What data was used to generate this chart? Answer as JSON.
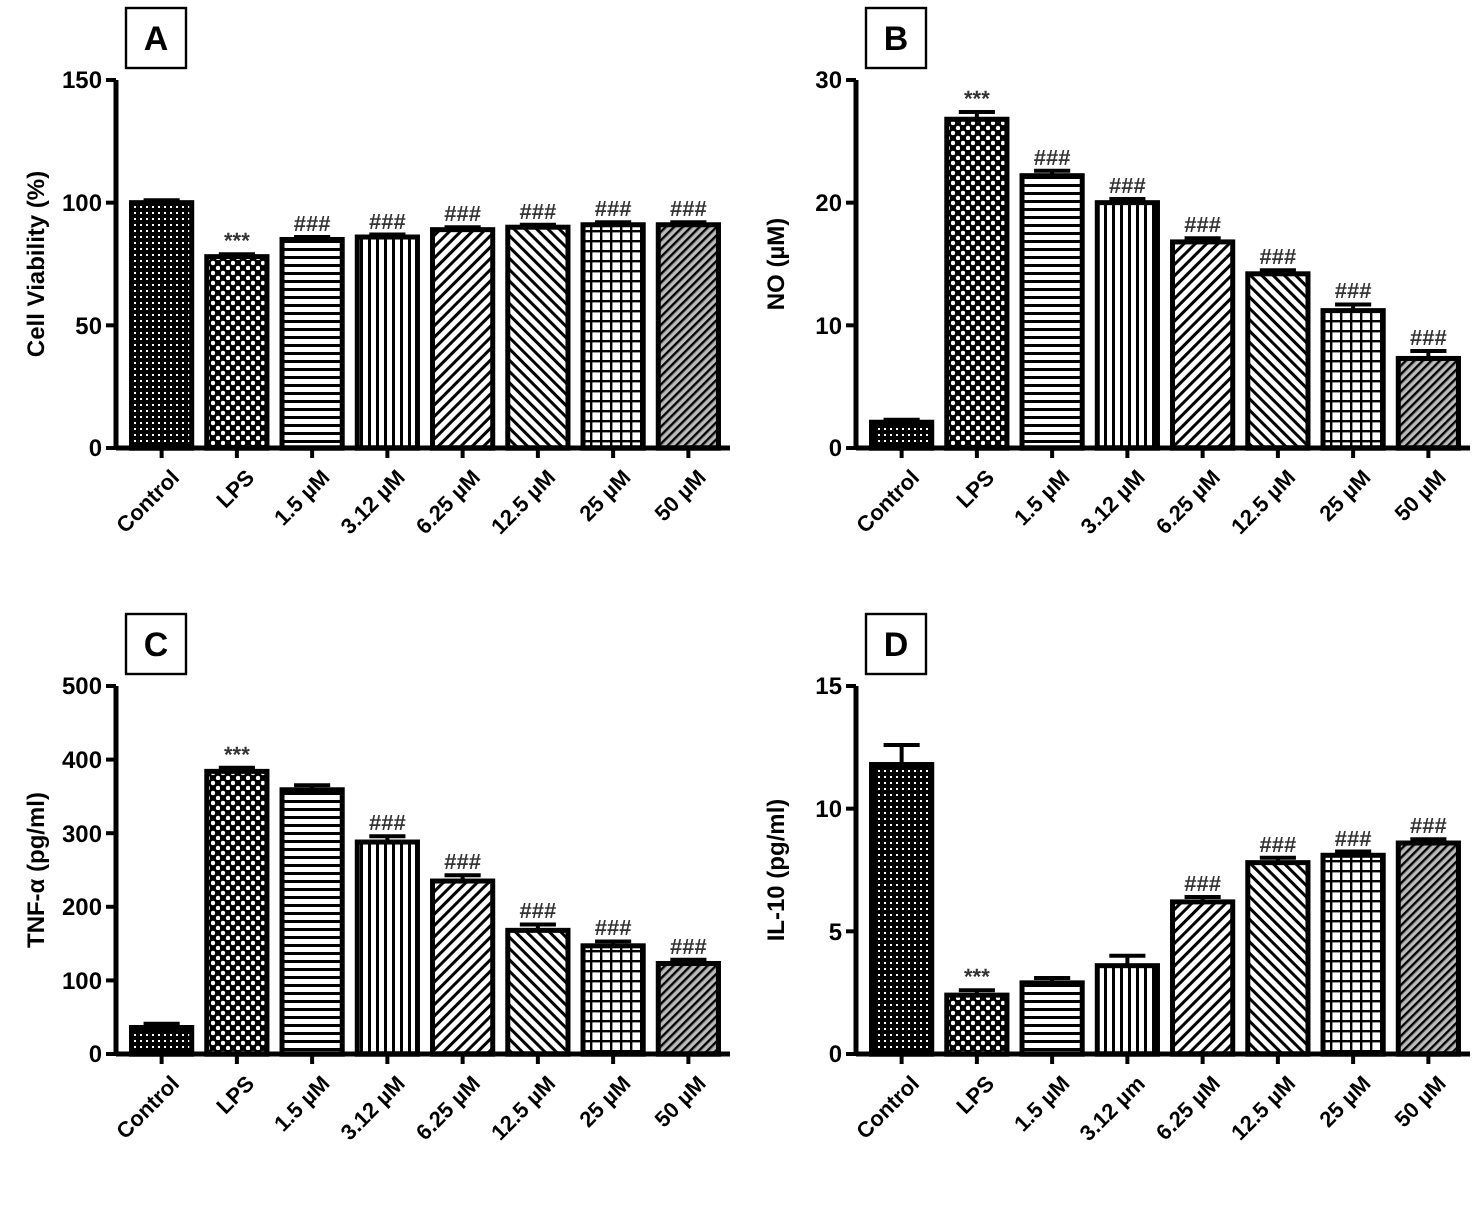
{
  "chart_data": [
    {
      "type": "bar",
      "title": "A",
      "ylabel": "Cell Viability (%)",
      "categories": [
        "Control",
        "LPS",
        "1.5 µM",
        "3.12 µM",
        "6.25 µM",
        "12.5 µM",
        "25 µM",
        "50 µM"
      ],
      "values": [
        100,
        78,
        85,
        86,
        89,
        90,
        91,
        91
      ],
      "errors": [
        1,
        1,
        1,
        1,
        1,
        1,
        1,
        1
      ],
      "color": "#000000",
      "ylim": [
        0,
        150
      ],
      "yticks": [
        0,
        50,
        100,
        150
      ],
      "annotations": [
        {
          "text": "***",
          "x": "LPS",
          "y": 79
        },
        {
          "text": "###",
          "x": "1.5 µM",
          "y": 86
        },
        {
          "text": "###",
          "x": "3.12 µM",
          "y": 87
        },
        {
          "text": "###",
          "x": "6.25 µM",
          "y": 90
        },
        {
          "text": "###",
          "x": "12.5 µM",
          "y": 91
        },
        {
          "text": "###",
          "x": "25 µM",
          "y": 92
        },
        {
          "text": "###",
          "x": "50 µM",
          "y": 92
        }
      ]
    },
    {
      "type": "bar",
      "title": "B",
      "ylabel": "NO (µM)",
      "categories": [
        "Control",
        "LPS",
        "1.5 µM",
        "3.12 µM",
        "6.25 µM",
        "12.5 µM",
        "25 µM",
        "50 µM"
      ],
      "values": [
        2.1,
        26.8,
        22.2,
        20,
        16.8,
        14.2,
        11.2,
        7.3
      ],
      "errors": [
        0.2,
        0.6,
        0.4,
        0.3,
        0.3,
        0.3,
        0.5,
        0.6
      ],
      "color": "#000000",
      "ylim": [
        0,
        30
      ],
      "yticks": [
        0,
        10,
        20,
        30
      ],
      "annotations": [
        {
          "text": "***",
          "x": "LPS",
          "y": 27.4
        },
        {
          "text": "###",
          "x": "1.5 µM",
          "y": 22.6
        },
        {
          "text": "###",
          "x": "3.12 µM",
          "y": 20.3
        },
        {
          "text": "###",
          "x": "6.25 µM",
          "y": 17.1
        },
        {
          "text": "###",
          "x": "12.5 µM",
          "y": 14.5
        },
        {
          "text": "###",
          "x": "25 µM",
          "y": 11.7
        },
        {
          "text": "###",
          "x": "50 µM",
          "y": 7.9
        }
      ]
    },
    {
      "type": "bar",
      "title": "C",
      "ylabel": "TNF-α (pg/ml)",
      "categories": [
        "Control",
        "LPS",
        "1.5 µM",
        "3.12 µM",
        "6.25 µM",
        "12.5 µM",
        "25 µM",
        "50 µM"
      ],
      "values": [
        36,
        384,
        359,
        288,
        235,
        168,
        147,
        123
      ],
      "errors": [
        5,
        5,
        6,
        8,
        8,
        8,
        6,
        5
      ],
      "color": "#000000",
      "ylim": [
        0,
        500
      ],
      "yticks": [
        0,
        100,
        200,
        300,
        400,
        500
      ],
      "annotations": [
        {
          "text": "***",
          "x": "LPS",
          "y": 389
        },
        {
          "text": "###",
          "x": "3.12 µM",
          "y": 296
        },
        {
          "text": "###",
          "x": "6.25 µM",
          "y": 243
        },
        {
          "text": "###",
          "x": "12.5 µM",
          "y": 176
        },
        {
          "text": "###",
          "x": "25 µM",
          "y": 153
        },
        {
          "text": "###",
          "x": "50 µM",
          "y": 128
        }
      ]
    },
    {
      "type": "bar",
      "title": "D",
      "ylabel": "IL-10 (pg/ml)",
      "categories": [
        "Control",
        "LPS",
        "1.5 µM",
        "3.12 µm",
        "6.25 µM",
        "12.5 µM",
        "25 µM",
        "50 µM"
      ],
      "values": [
        11.8,
        2.4,
        2.9,
        3.6,
        6.2,
        7.8,
        8.1,
        8.6
      ],
      "errors": [
        0.8,
        0.2,
        0.2,
        0.4,
        0.2,
        0.2,
        0.15,
        0.15
      ],
      "color": "#000000",
      "ylim": [
        0,
        15
      ],
      "yticks": [
        0,
        5,
        10,
        15
      ],
      "annotations": [
        {
          "text": "***",
          "x": "LPS",
          "y": 2.6
        },
        {
          "text": "###",
          "x": "6.25 µM",
          "y": 6.4
        },
        {
          "text": "###",
          "x": "12.5 µM",
          "y": 8.0
        },
        {
          "text": "###",
          "x": "25 µM",
          "y": 8.25
        },
        {
          "text": "###",
          "x": "50 µM",
          "y": 8.75
        }
      ]
    }
  ]
}
